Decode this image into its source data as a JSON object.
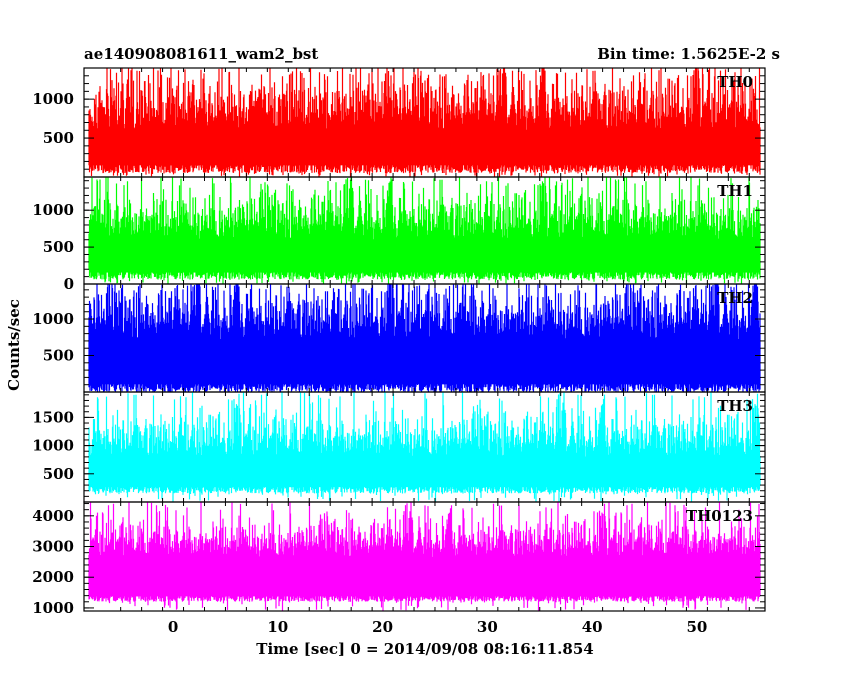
{
  "chart_data": {
    "type": "line",
    "title": "ae140908081611_wam2_bst",
    "subtitle": "Bin time: 1.5625E-2 s",
    "xlabel": "Time [sec] 0 = 2014/09/08 08:16:11.854",
    "ylabel": "Counts/sec",
    "xlim": [
      -8.5,
      56.5
    ],
    "data_x_range": [
      -8,
      56
    ],
    "x_ticks": [
      0,
      10,
      20,
      30,
      40,
      50
    ],
    "grid": false,
    "legend": "none",
    "panels": [
      {
        "name": "TH0",
        "color": "#ff0000",
        "ylim": [
          0,
          1400
        ],
        "y_ticks": [
          500,
          1000
        ],
        "baseline": 50,
        "mean": 600,
        "spread": 400,
        "peak_max": 1400
      },
      {
        "name": "TH1",
        "color": "#00ff00",
        "ylim": [
          0,
          1450
        ],
        "y_ticks": [
          0,
          500,
          1000
        ],
        "baseline": 60,
        "mean": 600,
        "spread": 380,
        "peak_max": 1450
      },
      {
        "name": "TH2",
        "color": "#0000ff",
        "ylim": [
          0,
          1480
        ],
        "y_ticks": [
          500,
          1000
        ],
        "baseline": 0,
        "mean": 720,
        "spread": 420,
        "peak_max": 1480
      },
      {
        "name": "TH3",
        "color": "#00ffff",
        "ylim": [
          0,
          1950
        ],
        "y_ticks": [
          500,
          1000,
          1500
        ],
        "baseline": 150,
        "mean": 800,
        "spread": 450,
        "peak_max": 1950
      },
      {
        "name": "TH0123",
        "color": "#ff00ff",
        "ylim": [
          900,
          4450
        ],
        "y_ticks": [
          1000,
          2000,
          3000,
          4000
        ],
        "baseline": 1200,
        "mean": 2650,
        "spread": 700,
        "peak_max": 4450
      }
    ]
  }
}
